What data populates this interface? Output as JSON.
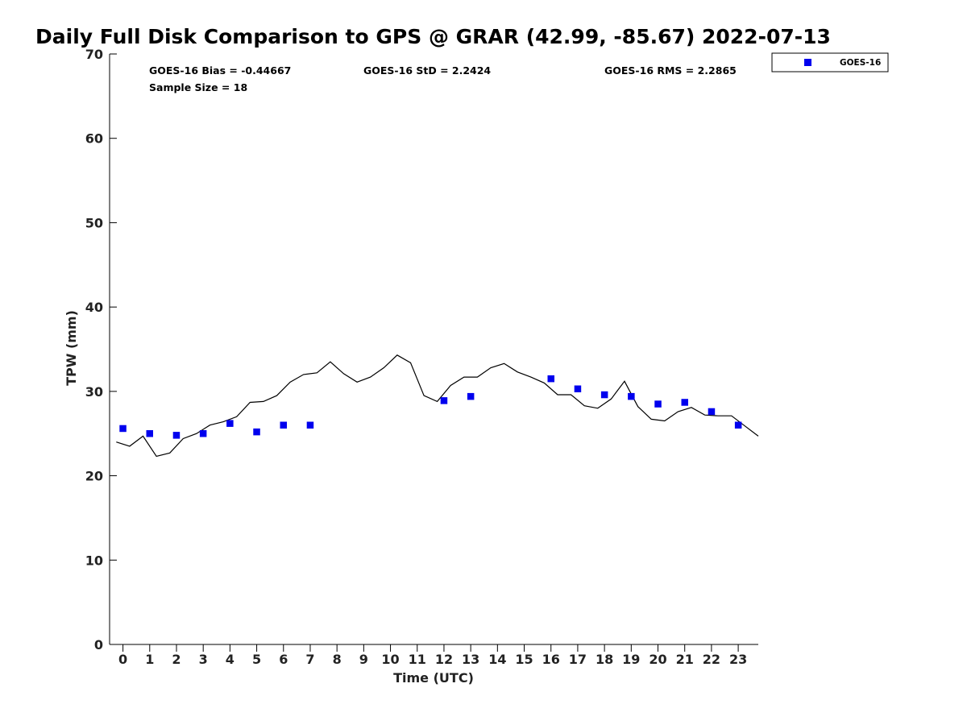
{
  "chart_data": {
    "type": "scatter",
    "title": "Daily Full Disk Comparison to GPS @ GRAR (42.99, -85.67) 2022-07-13",
    "xlabel": "Time (UTC)",
    "ylabel": "TPW (mm)",
    "xlim": [
      -0.5,
      23.75
    ],
    "ylim": [
      0,
      70
    ],
    "xticks": [
      "0",
      "1",
      "2",
      "3",
      "4",
      "5",
      "6",
      "7",
      "8",
      "9",
      "10",
      "11",
      "12",
      "13",
      "14",
      "15",
      "16",
      "17",
      "18",
      "19",
      "20",
      "21",
      "22",
      "23"
    ],
    "yticks": [
      "0",
      "10",
      "20",
      "30",
      "40",
      "50",
      "60",
      "70"
    ],
    "grid": false,
    "legend_position": "top-right, outside plot",
    "stats": {
      "bias": "GOES-16 Bias = -0.44667",
      "std": "GOES-16 StD = 2.2424",
      "rms": "GOES-16 RMS = 2.2865",
      "sample": "Sample Size = 18"
    },
    "series": [
      {
        "kind": "line",
        "color": "#000000",
        "x": [
          -0.25,
          0.25,
          0.75,
          1.25,
          1.75,
          2.25,
          2.75,
          3.25,
          3.75,
          4.25,
          4.75,
          5.25,
          5.75,
          6.25,
          6.75,
          7.25,
          7.75,
          8.25,
          8.75,
          9.25,
          9.75,
          10.25,
          10.75,
          11.25,
          11.75,
          12.25,
          12.75,
          13.25,
          13.75,
          14.25,
          14.75,
          15.25,
          15.75,
          16.25,
          16.75,
          17.25,
          17.75,
          18.25,
          18.75,
          19.25,
          19.75,
          20.25,
          20.75,
          21.25,
          21.75,
          22.25,
          22.75,
          23.25,
          23.75
        ],
        "y": [
          24.0,
          23.5,
          24.7,
          22.3,
          22.7,
          24.4,
          25.0,
          26.0,
          26.4,
          27.0,
          28.7,
          28.8,
          29.5,
          31.1,
          32.0,
          32.2,
          33.5,
          32.1,
          31.1,
          31.7,
          32.8,
          34.3,
          33.4,
          29.5,
          28.8,
          30.7,
          31.7,
          31.7,
          32.8,
          33.3,
          32.3,
          31.7,
          31.0,
          29.6,
          29.6,
          28.3,
          28.0,
          29.1,
          31.2,
          28.2,
          26.7,
          26.5,
          27.6,
          28.1,
          27.2,
          27.1,
          27.1,
          25.9,
          24.7
        ]
      },
      {
        "kind": "points",
        "name": "GOES-16",
        "color": "#0000ee",
        "x": [
          0,
          1,
          2,
          3,
          4,
          5,
          6,
          7,
          12,
          13,
          16,
          17,
          18,
          19,
          20,
          21,
          22,
          23
        ],
        "y": [
          25.6,
          25.0,
          24.8,
          25.0,
          26.2,
          25.2,
          26.0,
          26.0,
          28.9,
          29.4,
          31.5,
          30.3,
          29.6,
          29.4,
          28.5,
          28.7,
          27.6,
          26.0
        ]
      }
    ]
  }
}
